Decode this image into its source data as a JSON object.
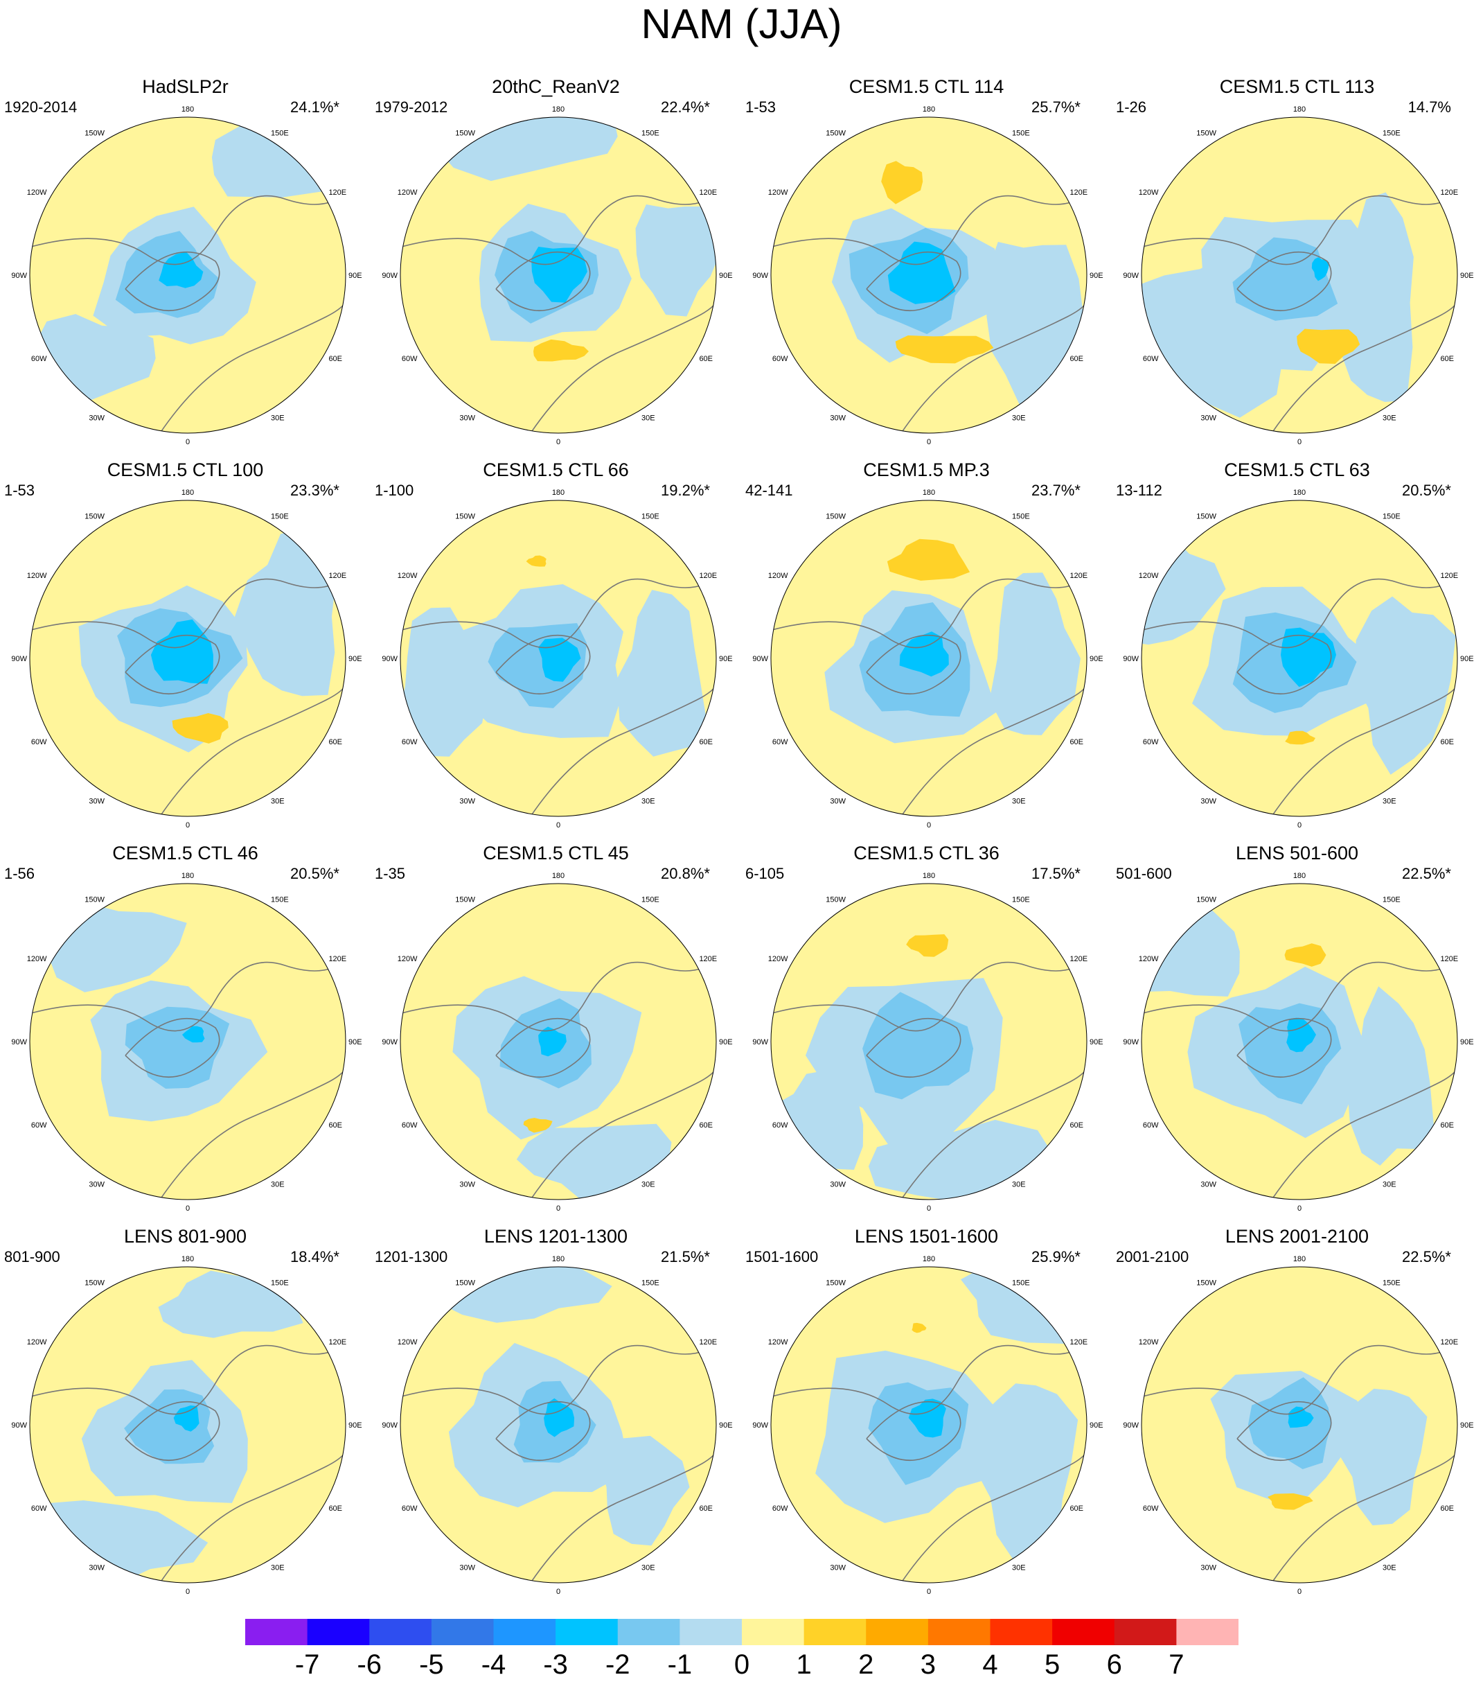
{
  "title": "NAM (JJA)",
  "longitude_labels": {
    "n": "180",
    "s": "0",
    "w": "90W",
    "e": "90E",
    "nw": "120W",
    "ne": "120E",
    "sw": "60W",
    "se": "60E",
    "nnw": "150W",
    "nne": "150E",
    "ssw": "30W",
    "sse": "30E"
  },
  "panels": [
    {
      "title": "HadSLP2r",
      "period": "1920-2014",
      "pct": "24.1%*"
    },
    {
      "title": "20thC_ReanV2",
      "period": "1979-2012",
      "pct": "22.4%*"
    },
    {
      "title": "CESM1.5 CTL 114",
      "period": "1-53",
      "pct": "25.7%*"
    },
    {
      "title": "CESM1.5 CTL 113",
      "period": "1-26",
      "pct": "14.7%"
    },
    {
      "title": "CESM1.5 CTL 100",
      "period": "1-53",
      "pct": "23.3%*"
    },
    {
      "title": "CESM1.5 CTL 66",
      "period": "1-100",
      "pct": "19.2%*"
    },
    {
      "title": "CESM1.5 MP.3",
      "period": "42-141",
      "pct": "23.7%*"
    },
    {
      "title": "CESM1.5 CTL 63",
      "period": "13-112",
      "pct": "20.5%*"
    },
    {
      "title": "CESM1.5 CTL 46",
      "period": "1-56",
      "pct": "20.5%*"
    },
    {
      "title": "CESM1.5 CTL 45",
      "period": "1-35",
      "pct": "20.8%*"
    },
    {
      "title": "CESM1.5 CTL 36",
      "period": "6-105",
      "pct": "17.5%*"
    },
    {
      "title": "LENS 501-600",
      "period": "501-600",
      "pct": "22.5%*"
    },
    {
      "title": "LENS 801-900",
      "period": "801-900",
      "pct": "18.4%*"
    },
    {
      "title": "LENS 1201-1300",
      "period": "1201-1300",
      "pct": "21.5%*"
    },
    {
      "title": "LENS 1501-1600",
      "period": "1501-1600",
      "pct": "25.9%*"
    },
    {
      "title": "LENS 2001-2100",
      "period": "2001-2100",
      "pct": "22.5%*"
    }
  ],
  "colorbar": {
    "colors": [
      "#8a1ef0",
      "#1a00ff",
      "#2e4ef0",
      "#3278e8",
      "#1e96ff",
      "#00c3ff",
      "#78c8f0",
      "#b4dcf0",
      "#fff59b",
      "#ffd228",
      "#ffaa00",
      "#ff7800",
      "#ff3200",
      "#f00000",
      "#d21919",
      "#ffb4b4"
    ],
    "labels": [
      "-7",
      "-6",
      "-5",
      "-4",
      "-3",
      "-2",
      "-1",
      "0",
      "1",
      "2",
      "3",
      "4",
      "5",
      "6",
      "7"
    ]
  },
  "map_colors": {
    "light_blue": "#b4dcf0",
    "mid_blue": "#78c8f0",
    "cyan": "#00c3ff",
    "yellow": "#fff59b",
    "orange": "#ffd228",
    "coast": "#777777"
  }
}
